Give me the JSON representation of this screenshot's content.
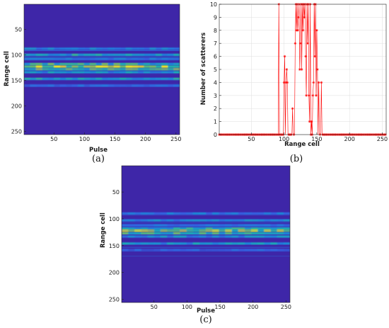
{
  "chart_data": [
    {
      "type": "heatmap",
      "caption": "(a)",
      "xlabel": "Pulse",
      "ylabel": "Range cell",
      "xlim": [
        1,
        256
      ],
      "ylim": [
        1,
        256
      ],
      "y_reversed": true,
      "xticks": [
        50,
        100,
        150,
        200,
        250
      ],
      "yticks": [
        50,
        100,
        150,
        200,
        250
      ],
      "colormap": "parula",
      "background_color": "#3e26a8",
      "bands": [
        {
          "row": 88,
          "intensity": 0.35
        },
        {
          "row": 100,
          "intensity": 0.45
        },
        {
          "row": 108,
          "intensity": 0.3
        },
        {
          "row": 118,
          "intensity": 0.55
        },
        {
          "row": 123,
          "intensity": 0.85
        },
        {
          "row": 128,
          "intensity": 0.6
        },
        {
          "row": 134,
          "intensity": 0.4
        },
        {
          "row": 147,
          "intensity": 0.45
        },
        {
          "row": 160,
          "intensity": 0.22
        }
      ]
    },
    {
      "type": "line",
      "caption": "(b)",
      "xlabel": "Range cell",
      "ylabel": "Number of scatterers",
      "xlim": [
        1,
        256
      ],
      "ylim": [
        0,
        10
      ],
      "xticks": [
        50,
        100,
        150,
        200,
        250
      ],
      "yticks": [
        0,
        1,
        2,
        3,
        4,
        5,
        6,
        7,
        8,
        9,
        10
      ],
      "grid": true,
      "marker": "*",
      "color": "#ff0000",
      "nonzero_points": [
        {
          "x": 92,
          "y": 10
        },
        {
          "x": 100,
          "y": 4
        },
        {
          "x": 101,
          "y": 6
        },
        {
          "x": 103,
          "y": 4
        },
        {
          "x": 104,
          "y": 5
        },
        {
          "x": 105,
          "y": 4
        },
        {
          "x": 113,
          "y": 2
        },
        {
          "x": 117,
          "y": 7
        },
        {
          "x": 118,
          "y": 10
        },
        {
          "x": 119,
          "y": 8
        },
        {
          "x": 120,
          "y": 10
        },
        {
          "x": 121,
          "y": 8
        },
        {
          "x": 122,
          "y": 9
        },
        {
          "x": 123,
          "y": 10
        },
        {
          "x": 124,
          "y": 5
        },
        {
          "x": 125,
          "y": 7
        },
        {
          "x": 126,
          "y": 10
        },
        {
          "x": 127,
          "y": 5
        },
        {
          "x": 128,
          "y": 10
        },
        {
          "x": 129,
          "y": 8
        },
        {
          "x": 130,
          "y": 10
        },
        {
          "x": 131,
          "y": 9
        },
        {
          "x": 132,
          "y": 10
        },
        {
          "x": 133,
          "y": 6
        },
        {
          "x": 134,
          "y": 3
        },
        {
          "x": 135,
          "y": 10
        },
        {
          "x": 136,
          "y": 7
        },
        {
          "x": 137,
          "y": 10
        },
        {
          "x": 138,
          "y": 3
        },
        {
          "x": 139,
          "y": 1
        },
        {
          "x": 140,
          "y": 10
        },
        {
          "x": 142,
          "y": 1
        },
        {
          "x": 144,
          "y": 3
        },
        {
          "x": 145,
          "y": 4
        },
        {
          "x": 146,
          "y": 10
        },
        {
          "x": 147,
          "y": 6
        },
        {
          "x": 148,
          "y": 10
        },
        {
          "x": 149,
          "y": 3
        },
        {
          "x": 150,
          "y": 8
        },
        {
          "x": 151,
          "y": 5
        },
        {
          "x": 153,
          "y": 4
        },
        {
          "x": 157,
          "y": 4
        }
      ],
      "other_points_value": 0
    },
    {
      "type": "heatmap",
      "caption": "(c)",
      "xlabel": "Pulse",
      "ylabel": "Range cell",
      "xlim": [
        1,
        256
      ],
      "ylim": [
        1,
        256
      ],
      "y_reversed": true,
      "xticks": [
        50,
        100,
        150,
        200,
        250
      ],
      "yticks": [
        50,
        100,
        150,
        200,
        250
      ],
      "colormap": "parula",
      "background_color": "#3e26a8",
      "bands": [
        {
          "row": 90,
          "intensity": 0.28
        },
        {
          "row": 103,
          "intensity": 0.35
        },
        {
          "row": 112,
          "intensity": 0.25
        },
        {
          "row": 118,
          "intensity": 0.5
        },
        {
          "row": 122,
          "intensity": 0.8
        },
        {
          "row": 127,
          "intensity": 0.55
        },
        {
          "row": 133,
          "intensity": 0.35
        },
        {
          "row": 146,
          "intensity": 0.4
        },
        {
          "row": 158,
          "intensity": 0.2
        }
      ]
    }
  ]
}
